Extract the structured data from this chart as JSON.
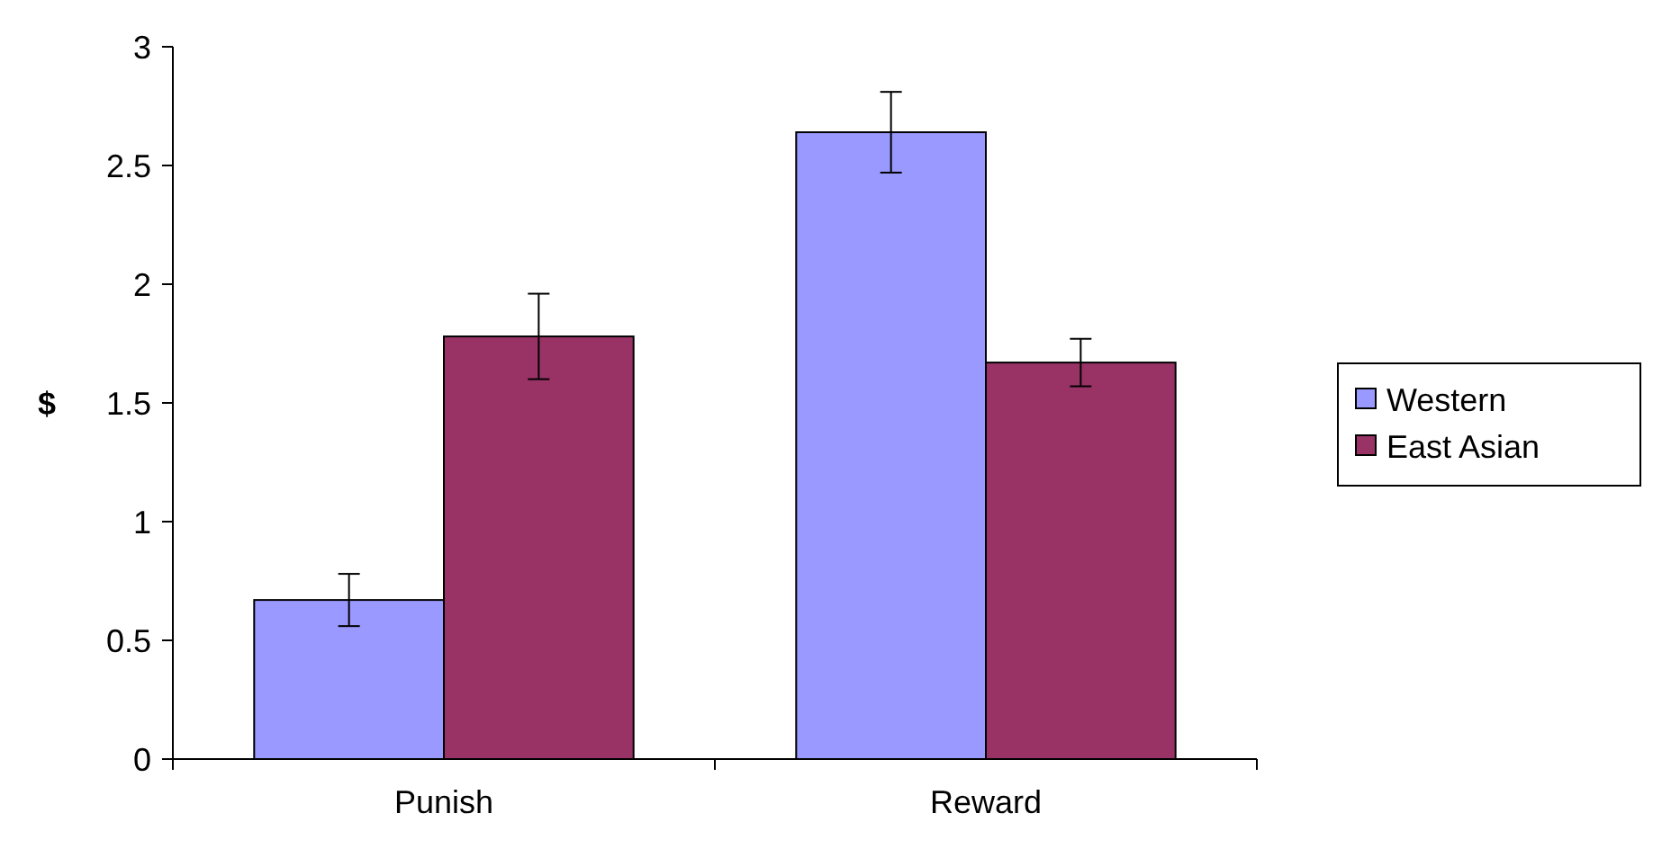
{
  "chart_data": {
    "type": "bar",
    "ylabel": "$",
    "categories": [
      "Punish",
      "Reward"
    ],
    "series": [
      {
        "name": "Western",
        "color": "#9999ff",
        "values": [
          0.67,
          2.64
        ],
        "errors": [
          0.11,
          0.17
        ]
      },
      {
        "name": "East Asian",
        "color": "#993366",
        "values": [
          1.78,
          1.67
        ],
        "errors": [
          0.18,
          0.1
        ]
      }
    ],
    "ylim": [
      0,
      3
    ],
    "yticks": [
      0,
      0.5,
      1,
      1.5,
      2,
      2.5,
      3
    ],
    "legend": "right"
  }
}
